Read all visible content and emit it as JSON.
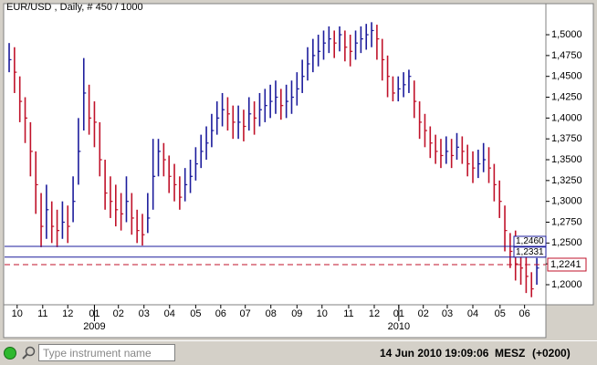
{
  "chart_data": {
    "type": "hlc",
    "title": "EUR/USD , Daily, # 450 / 1000",
    "up_color": "#1c1c9c",
    "down_color": "#c0122a",
    "xlim": [
      -0.86,
      100.7
    ],
    "xticks": [
      {
        "value": 1.5,
        "label": "10"
      },
      {
        "value": 6.3,
        "label": "11"
      },
      {
        "value": 11,
        "label": "12"
      },
      {
        "value": 16,
        "label": "01"
      },
      {
        "value": 20.5,
        "label": "02"
      },
      {
        "value": 25.3,
        "label": "03"
      },
      {
        "value": 30.1,
        "label": "04"
      },
      {
        "value": 35,
        "label": "05"
      },
      {
        "value": 39.7,
        "label": "06"
      },
      {
        "value": 44.3,
        "label": "07"
      },
      {
        "value": 49.1,
        "label": "08"
      },
      {
        "value": 54,
        "label": "09"
      },
      {
        "value": 58.7,
        "label": "10"
      },
      {
        "value": 63.7,
        "label": "11"
      },
      {
        "value": 68.5,
        "label": "12"
      },
      {
        "value": 73.1,
        "label": "01"
      },
      {
        "value": 77.7,
        "label": "02"
      },
      {
        "value": 82.2,
        "label": "03"
      },
      {
        "value": 87,
        "label": "04"
      },
      {
        "value": 92.1,
        "label": "05"
      },
      {
        "value": 96.7,
        "label": "06"
      }
    ],
    "year_labels": [
      {
        "value": 16,
        "label": "2009"
      },
      {
        "value": 73.1,
        "label": "2010"
      }
    ],
    "ylim": [
      1.177,
      1.5307
    ],
    "yticks": [
      {
        "value": 1.2,
        "label": "1,2000"
      },
      {
        "value": 1.225,
        "label": "1,2250"
      },
      {
        "value": 1.25,
        "label": "1,2500"
      },
      {
        "value": 1.275,
        "label": "1,2750"
      },
      {
        "value": 1.3,
        "label": "1,3000"
      },
      {
        "value": 1.325,
        "label": "1,3250"
      },
      {
        "value": 1.35,
        "label": "1,3500"
      },
      {
        "value": 1.375,
        "label": "1,3750"
      },
      {
        "value": 1.4,
        "label": "1,4000"
      },
      {
        "value": 1.425,
        "label": "1,4250"
      },
      {
        "value": 1.45,
        "label": "1,4500"
      },
      {
        "value": 1.475,
        "label": "1,4750"
      },
      {
        "value": 1.5,
        "label": "1,5000"
      }
    ],
    "high": [
      1.49,
      1.485,
      1.45,
      1.425,
      1.395,
      1.36,
      1.31,
      1.32,
      1.3,
      1.29,
      1.3,
      1.295,
      1.33,
      1.4,
      1.472,
      1.44,
      1.42,
      1.395,
      1.35,
      1.33,
      1.32,
      1.31,
      1.33,
      1.31,
      1.29,
      1.285,
      1.31,
      1.375,
      1.375,
      1.37,
      1.355,
      1.345,
      1.33,
      1.34,
      1.35,
      1.365,
      1.38,
      1.39,
      1.405,
      1.42,
      1.43,
      1.425,
      1.415,
      1.415,
      1.41,
      1.425,
      1.42,
      1.43,
      1.435,
      1.44,
      1.445,
      1.435,
      1.44,
      1.445,
      1.455,
      1.47,
      1.485,
      1.495,
      1.5,
      1.505,
      1.51,
      1.505,
      1.51,
      1.505,
      1.5,
      1.505,
      1.51,
      1.513,
      1.515,
      1.512,
      1.495,
      1.475,
      1.45,
      1.45,
      1.455,
      1.458,
      1.445,
      1.42,
      1.405,
      1.39,
      1.38,
      1.375,
      1.378,
      1.375,
      1.382,
      1.378,
      1.368,
      1.36,
      1.362,
      1.37,
      1.365,
      1.345,
      1.325,
      1.295,
      1.262,
      1.265,
      1.245,
      1.235,
      1.215,
      1.232
    ],
    "low": [
      1.455,
      1.43,
      1.395,
      1.37,
      1.33,
      1.285,
      1.245,
      1.255,
      1.25,
      1.245,
      1.255,
      1.25,
      1.275,
      1.32,
      1.385,
      1.38,
      1.365,
      1.33,
      1.29,
      1.28,
      1.27,
      1.265,
      1.275,
      1.26,
      1.25,
      1.247,
      1.262,
      1.29,
      1.33,
      1.33,
      1.31,
      1.3,
      1.29,
      1.3,
      1.31,
      1.325,
      1.34,
      1.35,
      1.365,
      1.38,
      1.39,
      1.385,
      1.375,
      1.375,
      1.372,
      1.385,
      1.38,
      1.39,
      1.395,
      1.4,
      1.405,
      1.398,
      1.4,
      1.405,
      1.415,
      1.43,
      1.445,
      1.455,
      1.462,
      1.47,
      1.478,
      1.472,
      1.48,
      1.468,
      1.462,
      1.47,
      1.478,
      1.482,
      1.485,
      1.47,
      1.445,
      1.425,
      1.42,
      1.42,
      1.425,
      1.43,
      1.4,
      1.375,
      1.365,
      1.352,
      1.345,
      1.34,
      1.345,
      1.34,
      1.35,
      1.345,
      1.33,
      1.322,
      1.328,
      1.335,
      1.322,
      1.3,
      1.28,
      1.24,
      1.22,
      1.205,
      1.2,
      1.19,
      1.185,
      1.2
    ],
    "close": [
      1.47,
      1.455,
      1.42,
      1.4,
      1.36,
      1.32,
      1.27,
      1.29,
      1.27,
      1.265,
      1.275,
      1.27,
      1.3,
      1.36,
      1.43,
      1.4,
      1.395,
      1.35,
      1.31,
      1.3,
      1.29,
      1.285,
      1.3,
      1.28,
      1.265,
      1.26,
      1.28,
      1.33,
      1.36,
      1.35,
      1.33,
      1.32,
      1.305,
      1.32,
      1.33,
      1.345,
      1.36,
      1.37,
      1.385,
      1.4,
      1.41,
      1.405,
      1.395,
      1.395,
      1.39,
      1.405,
      1.4,
      1.41,
      1.415,
      1.42,
      1.425,
      1.415,
      1.42,
      1.425,
      1.435,
      1.45,
      1.465,
      1.475,
      1.48,
      1.49,
      1.495,
      1.49,
      1.5,
      1.485,
      1.48,
      1.49,
      1.495,
      1.5,
      1.505,
      1.495,
      1.47,
      1.45,
      1.43,
      1.435,
      1.44,
      1.45,
      1.42,
      1.395,
      1.385,
      1.37,
      1.36,
      1.355,
      1.36,
      1.355,
      1.365,
      1.36,
      1.345,
      1.34,
      1.345,
      1.35,
      1.34,
      1.32,
      1.3,
      1.265,
      1.24,
      1.225,
      1.22,
      1.21,
      1.195,
      1.22
    ],
    "levels": [
      {
        "value": 1.246,
        "label": "1,2460",
        "color": "#1c1c9c",
        "style": "solid"
      },
      {
        "value": 1.2331,
        "label": "1,2331",
        "color": "#1c1c9c",
        "style": "solid"
      },
      {
        "value": 1.2241,
        "label": "1,2241",
        "color": "#c0122a",
        "style": "dashed"
      }
    ]
  },
  "status_bar": {
    "search_placeholder": "Type instrument name",
    "timestamp": "14 Jun 2010 19:09:06",
    "timezone": "MESZ",
    "utc_offset": "(+0200)"
  }
}
